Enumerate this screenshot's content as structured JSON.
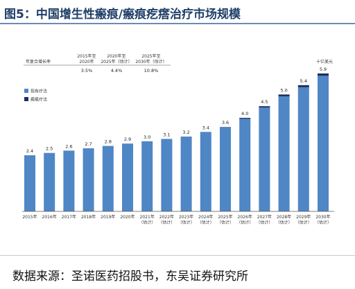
{
  "header": {
    "title": "图5：中国增生性瘢痕/瘢痕疙瘩治疗市场规模"
  },
  "footer": {
    "source": "数据来源：圣诺医药招股书，东吴证券研究所"
  },
  "cagr_table": {
    "row_label": "年复合增长率",
    "columns": [
      {
        "period_line1": "2015年至",
        "period_line2": "2020年",
        "value": "3.5%"
      },
      {
        "period_line1": "2020年至",
        "period_line2": "2025年（估计）",
        "value": "4.4%"
      },
      {
        "period_line1": "2025年至",
        "period_line2": "2030年（估计）",
        "value": "10.8%"
      }
    ]
  },
  "chart_data": {
    "type": "bar",
    "unit_label": "十亿美元",
    "categories": [
      {
        "line1": "2015年",
        "line2": ""
      },
      {
        "line1": "2016年",
        "line2": ""
      },
      {
        "line1": "2017年",
        "line2": ""
      },
      {
        "line1": "2018年",
        "line2": ""
      },
      {
        "line1": "2019年",
        "line2": ""
      },
      {
        "line1": "2020年",
        "line2": ""
      },
      {
        "line1": "2021年",
        "line2": "（估计）"
      },
      {
        "line1": "2022年",
        "line2": "（估计）"
      },
      {
        "line1": "2023年",
        "line2": "（估计）"
      },
      {
        "line1": "2024年",
        "line2": "（估计）"
      },
      {
        "line1": "2025年",
        "line2": "（估计）"
      },
      {
        "line1": "2026年",
        "line2": "（估计）"
      },
      {
        "line1": "2027年",
        "line2": "（估计）"
      },
      {
        "line1": "2028年",
        "line2": "（估计）"
      },
      {
        "line1": "2029年",
        "line2": "（估计）"
      },
      {
        "line1": "2030年",
        "line2": "（估计）"
      }
    ],
    "totals": [
      "2.4",
      "2.5",
      "2.6",
      "2.7",
      "2.8",
      "2.9",
      "3.0",
      "3.1",
      "3.2",
      "3.4",
      "3.6",
      "4.0",
      "4.5",
      "5.0",
      "5.4",
      "5.9"
    ],
    "series": [
      {
        "name": "现有疗法",
        "color": "#4f86c6",
        "values": [
          2.4,
          2.5,
          2.6,
          2.7,
          2.8,
          2.9,
          3.0,
          3.1,
          3.2,
          3.4,
          3.6,
          3.96,
          4.44,
          4.92,
          5.31,
          5.8
        ]
      },
      {
        "name": "瘢痕疗法",
        "color": "#1f2f5c",
        "values": [
          0,
          0,
          0,
          0,
          0,
          0,
          0,
          0,
          0,
          0,
          0.01,
          0.04,
          0.06,
          0.08,
          0.09,
          0.1
        ]
      }
    ],
    "ylim": [
      0,
      5.9
    ],
    "grid": false,
    "legend_position": "top-left"
  }
}
